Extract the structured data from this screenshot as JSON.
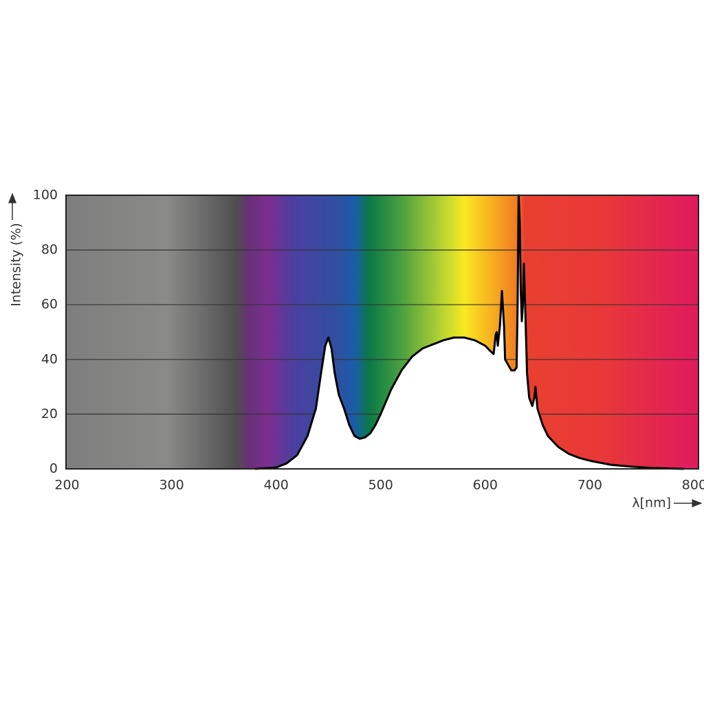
{
  "chart_data": {
    "type": "area",
    "y_label": "Intensity (%)",
    "x_label": "λ[nm]",
    "color": "#000000",
    "fill": "#ffffff",
    "grid": true,
    "xlim": [
      199,
      804
    ],
    "ylim": [
      0,
      100
    ],
    "xticks": [
      200,
      300,
      400,
      500,
      600,
      700,
      800
    ],
    "yticks": [
      0,
      20,
      40,
      60,
      80,
      100
    ],
    "x": [
      380,
      400,
      410,
      420,
      430,
      438,
      443,
      447,
      450,
      453,
      456,
      460,
      465,
      470,
      475,
      480,
      485,
      490,
      495,
      500,
      510,
      520,
      530,
      540,
      550,
      560,
      570,
      580,
      590,
      600,
      605,
      608,
      610,
      611,
      612,
      614,
      616,
      618,
      619,
      622,
      625,
      628,
      630,
      631,
      632,
      633,
      634,
      635,
      636,
      637,
      638,
      640,
      642,
      645,
      647,
      648,
      650,
      655,
      660,
      670,
      680,
      690,
      700,
      720,
      740,
      760,
      780,
      790
    ],
    "values": [
      0,
      0.5,
      2,
      5,
      12,
      22,
      35,
      45,
      48,
      44,
      35,
      27,
      22,
      16,
      12,
      11,
      11.5,
      13,
      16,
      20,
      29,
      36,
      41,
      44,
      45.5,
      47,
      48,
      48,
      47,
      45,
      43,
      42,
      49,
      50,
      45,
      52,
      65,
      52,
      40,
      38,
      36,
      36,
      37,
      60,
      100,
      90,
      65,
      54,
      60,
      75,
      62,
      35,
      26,
      23,
      26,
      30,
      22,
      16,
      12,
      8,
      5.5,
      4,
      3,
      1.5,
      0.8,
      0.3,
      0.1,
      0
    ]
  }
}
